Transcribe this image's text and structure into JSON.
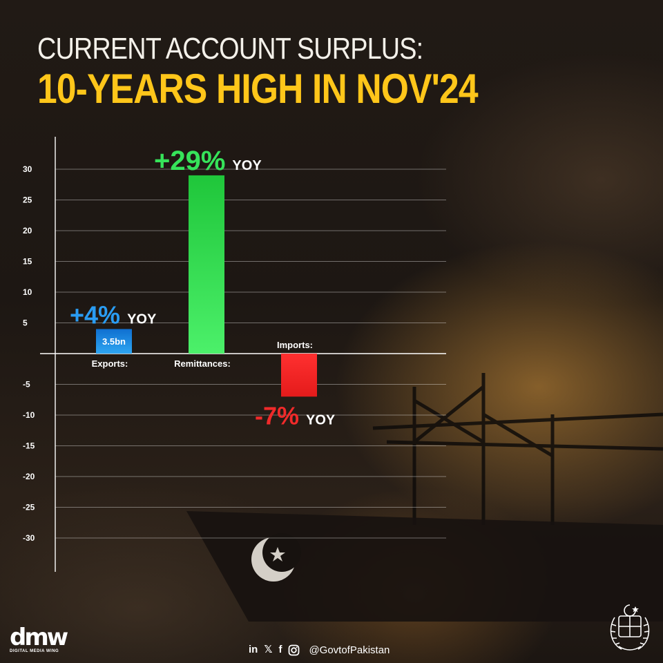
{
  "title_line1": "CURRENT ACCOUNT SURPLUS:",
  "title_line2": "10-YEARS HIGH IN NOV'24",
  "chart_data": {
    "type": "bar",
    "categories": [
      "Exports:",
      "Remittances:",
      "Imports:"
    ],
    "values": [
      4,
      29,
      -7
    ],
    "bar_labels": [
      "+4%",
      "+29%",
      "-7%"
    ],
    "label_suffix": "YOY",
    "inner_labels": [
      "3.5bn",
      "",
      ""
    ],
    "yticks": [
      30,
      25,
      20,
      15,
      10,
      5,
      -5,
      -10,
      -15,
      -20,
      -25,
      -30
    ],
    "ylim": [
      -35,
      35
    ],
    "grid": true,
    "colors": [
      "#1f8fe0",
      "#2ee24e",
      "#e42424"
    ],
    "label_colors": [
      "#2a9cf2",
      "#36e35a",
      "#f02a2a"
    ]
  },
  "footer": {
    "logo_text": "dmw",
    "logo_subtitle": "DIGITAL MEDIA WING",
    "social_icons": [
      "linkedin-icon",
      "x-icon",
      "facebook-icon",
      "instagram-icon"
    ],
    "handle": "@GovtofPakistan"
  }
}
